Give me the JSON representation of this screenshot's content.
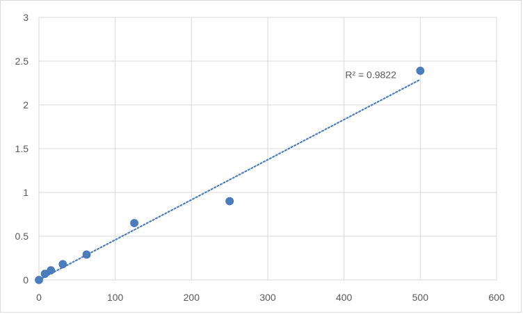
{
  "chart_data": {
    "type": "scatter",
    "title": "",
    "xlabel": "",
    "ylabel": "",
    "xlim": [
      0,
      600
    ],
    "ylim": [
      0,
      3
    ],
    "x_ticks": [
      0,
      100,
      200,
      300,
      400,
      500,
      600
    ],
    "y_ticks": [
      0,
      0.5,
      1,
      1.5,
      2,
      2.5,
      3
    ],
    "x_tick_labels": [
      "0",
      "100",
      "200",
      "300",
      "400",
      "500",
      "600"
    ],
    "y_tick_labels": [
      "0",
      "0.5",
      "1",
      "1.5",
      "2",
      "2.5",
      "3"
    ],
    "grid": true,
    "legend": "none",
    "series": [
      {
        "points": [
          {
            "x": 0,
            "y": 0.0
          },
          {
            "x": 7.8,
            "y": 0.07
          },
          {
            "x": 15.6,
            "y": 0.11
          },
          {
            "x": 31.25,
            "y": 0.18
          },
          {
            "x": 62.5,
            "y": 0.29
          },
          {
            "x": 125,
            "y": 0.65
          },
          {
            "x": 250,
            "y": 0.9
          },
          {
            "x": 500,
            "y": 2.39
          }
        ],
        "color": "#4a7ebb"
      }
    ],
    "trendline": {
      "type": "linear",
      "style": "dotted",
      "color": "#4a7ebb",
      "from": {
        "x": 0,
        "y": 0.0
      },
      "to": {
        "x": 500,
        "y": 2.29
      },
      "label": "R² = 0.9822"
    },
    "colors": {
      "grid": "#d9d9d9",
      "text": "#595959"
    }
  }
}
